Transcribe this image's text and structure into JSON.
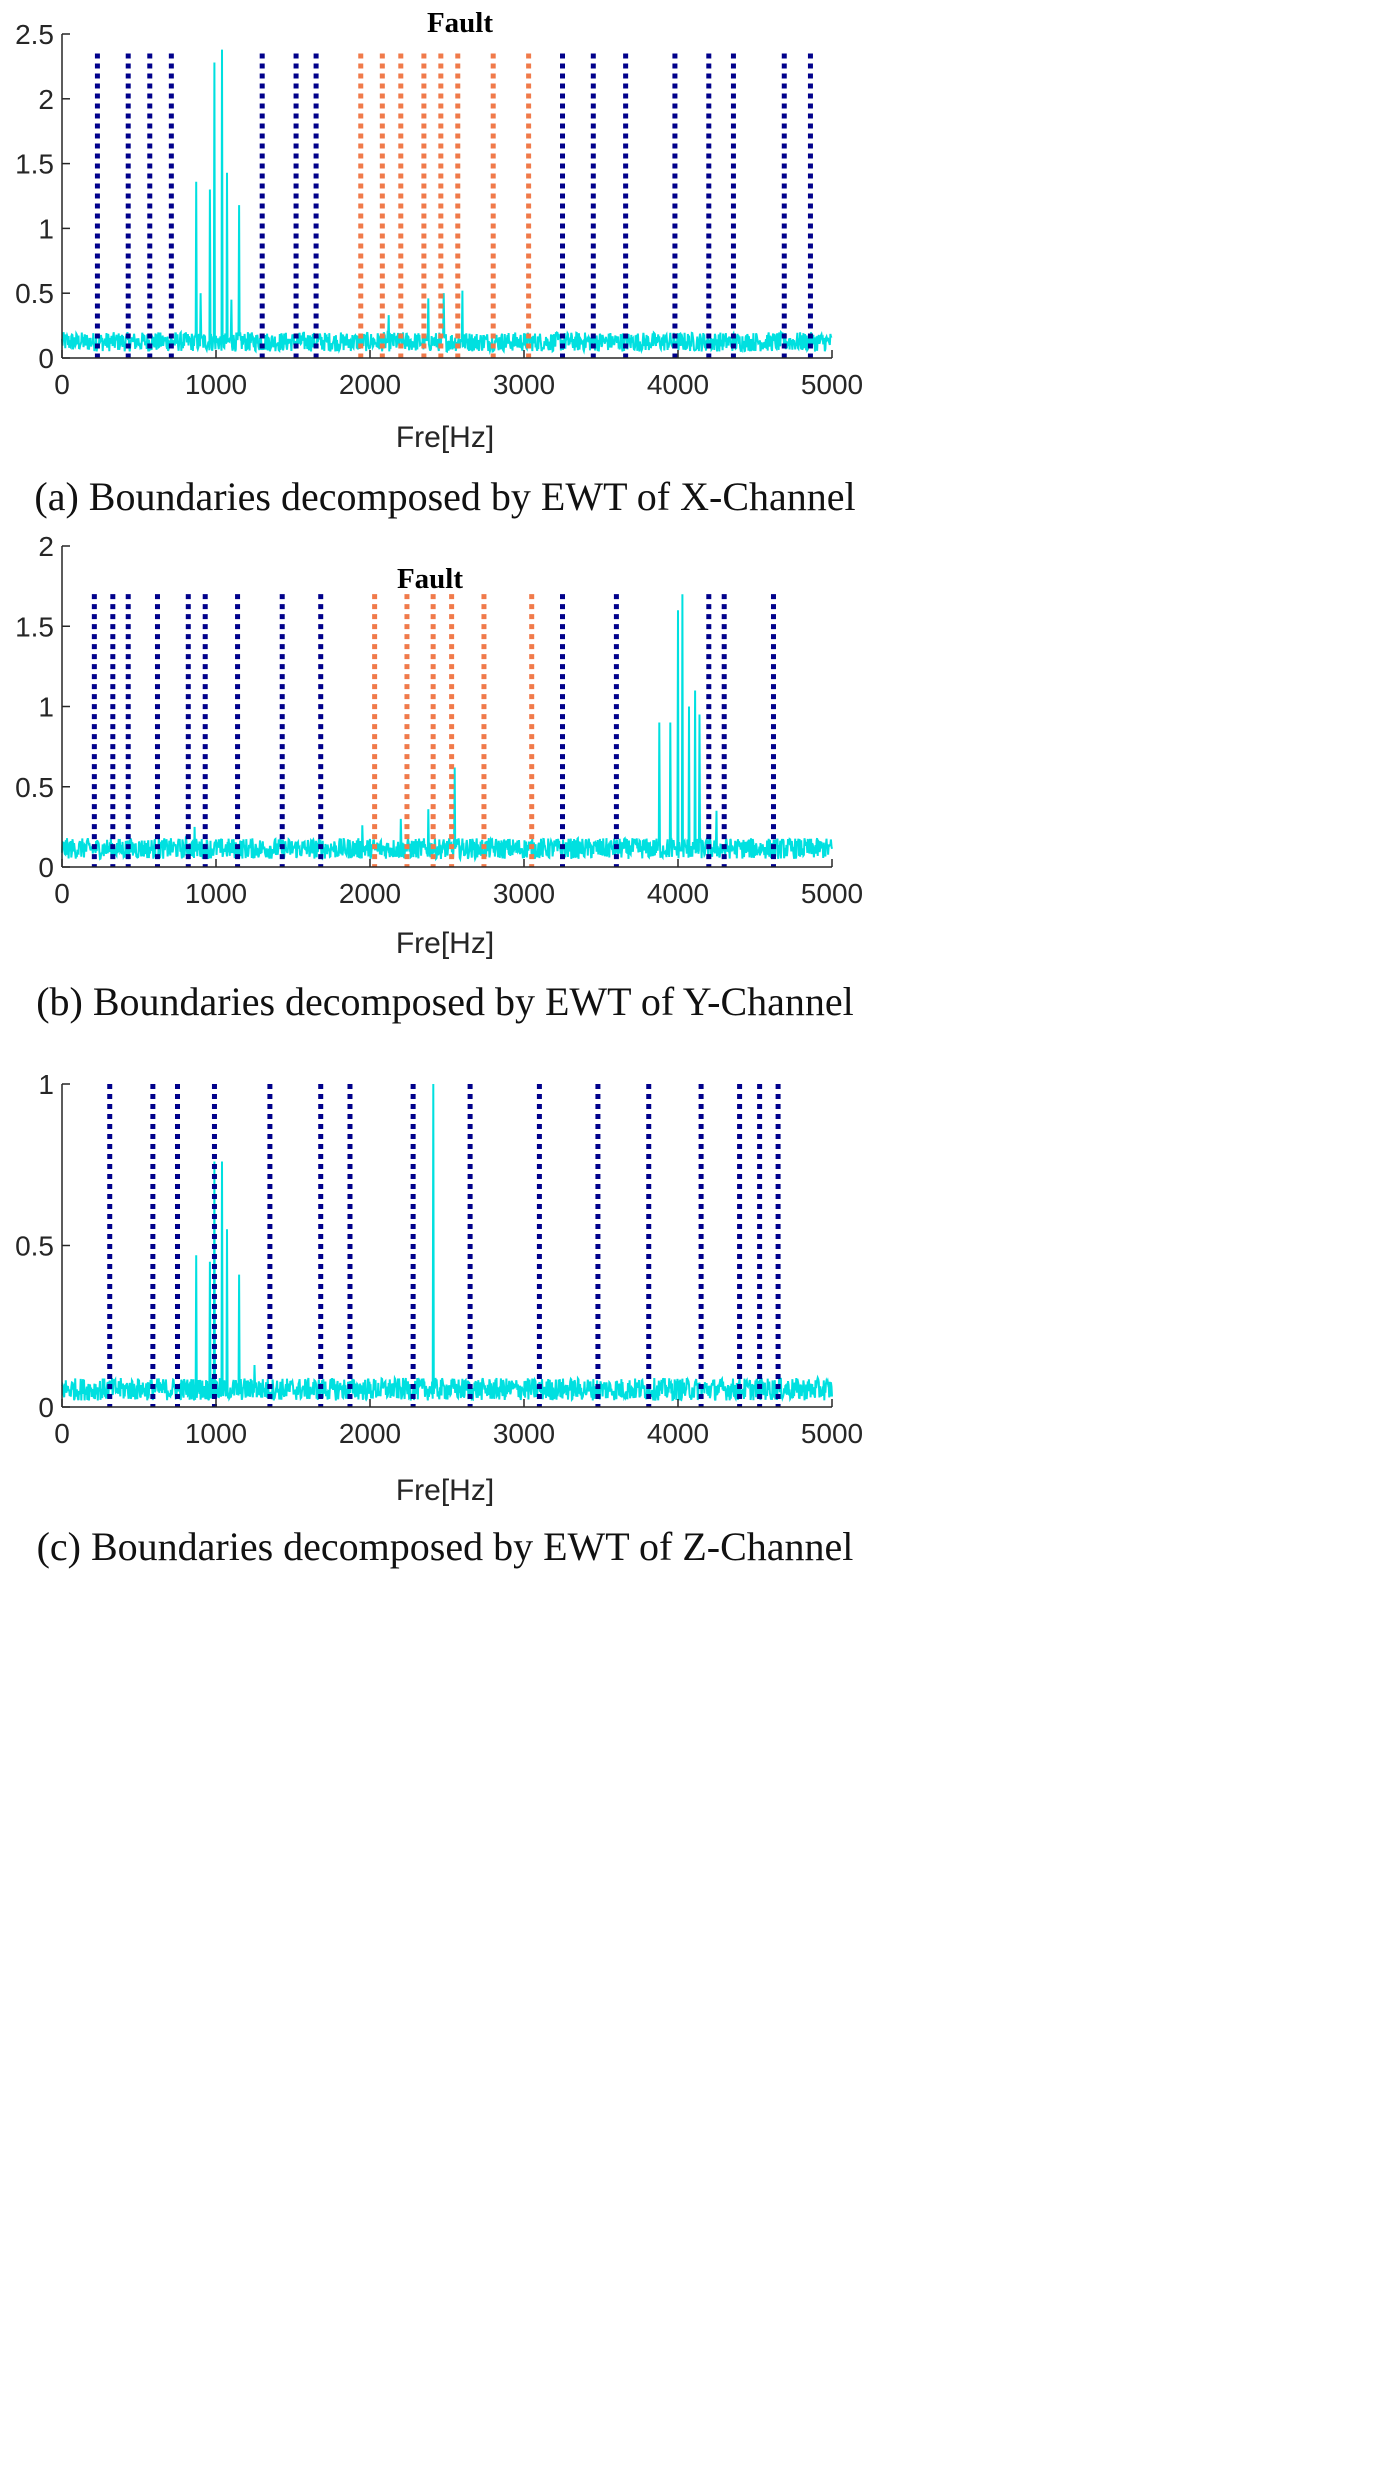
{
  "chart_data": [
    {
      "type": "line",
      "caption": "(a) Boundaries decomposed by EWT of X-Channel",
      "annotation": "Fault",
      "xlabel": "Fre[Hz]",
      "ylabel": "",
      "xlim": [
        0,
        5000
      ],
      "ylim": [
        0,
        2.5
      ],
      "xticks": [
        "0",
        "1000",
        "2000",
        "3000",
        "4000",
        "5000"
      ],
      "yticks": [
        "0",
        "0.5",
        "1",
        "1.5",
        "2",
        "2.5"
      ],
      "xtick_values": [
        0,
        1000,
        2000,
        3000,
        4000,
        5000
      ],
      "ytick_values": [
        0,
        0.5,
        1,
        1.5,
        2,
        2.5
      ],
      "boundary_height": 2.35,
      "baseline": [
        0.05,
        0.2
      ],
      "baseline_color": "#00e0e0",
      "normal_color": "#00008b",
      "fault_color": "#f07a4a",
      "normal_boundaries": [
        230,
        430,
        570,
        710,
        1300,
        1520,
        1650,
        3250,
        3450,
        3660,
        3980,
        4200,
        4360,
        4690,
        4860
      ],
      "fault_boundaries": [
        1940,
        2080,
        2200,
        2350,
        2460,
        2570,
        2800,
        3030
      ],
      "peaks": [
        {
          "x": 870,
          "y": 1.36
        },
        {
          "x": 900,
          "y": 0.5
        },
        {
          "x": 960,
          "y": 1.3
        },
        {
          "x": 990,
          "y": 2.28
        },
        {
          "x": 1040,
          "y": 2.38
        },
        {
          "x": 1070,
          "y": 1.43
        },
        {
          "x": 1150,
          "y": 1.18
        },
        {
          "x": 1100,
          "y": 0.45
        },
        {
          "x": 2120,
          "y": 0.33
        },
        {
          "x": 2380,
          "y": 0.46
        },
        {
          "x": 2480,
          "y": 0.5
        },
        {
          "x": 2600,
          "y": 0.52
        }
      ]
    },
    {
      "type": "line",
      "caption": "(b) Boundaries decomposed by EWT of Y-Channel",
      "annotation": "Fault",
      "xlabel": "Fre[Hz]",
      "ylabel": "",
      "xlim": [
        0,
        5000
      ],
      "ylim": [
        0,
        2
      ],
      "xticks": [
        "0",
        "1000",
        "2000",
        "3000",
        "4000",
        "5000"
      ],
      "yticks": [
        "0",
        "0.5",
        "1",
        "1.5",
        "2"
      ],
      "xtick_values": [
        0,
        1000,
        2000,
        3000,
        4000,
        5000
      ],
      "ytick_values": [
        0,
        0.5,
        1,
        1.5,
        2
      ],
      "boundary_height": 1.7,
      "baseline": [
        0.05,
        0.18
      ],
      "baseline_color": "#00e0e0",
      "normal_color": "#00008b",
      "fault_color": "#f07a4a",
      "normal_boundaries": [
        210,
        330,
        430,
        620,
        820,
        930,
        1140,
        1430,
        1680,
        3250,
        3600,
        4200,
        4300,
        4620
      ],
      "fault_boundaries": [
        2030,
        2240,
        2410,
        2530,
        2740,
        3050
      ],
      "peaks": [
        {
          "x": 860,
          "y": 0.25
        },
        {
          "x": 1950,
          "y": 0.26
        },
        {
          "x": 2200,
          "y": 0.3
        },
        {
          "x": 2380,
          "y": 0.36
        },
        {
          "x": 2550,
          "y": 0.62
        },
        {
          "x": 3880,
          "y": 0.9
        },
        {
          "x": 3950,
          "y": 0.9
        },
        {
          "x": 4000,
          "y": 1.6
        },
        {
          "x": 4030,
          "y": 1.7
        },
        {
          "x": 4070,
          "y": 1.0
        },
        {
          "x": 4110,
          "y": 1.1
        },
        {
          "x": 4140,
          "y": 0.95
        },
        {
          "x": 4250,
          "y": 0.35
        }
      ]
    },
    {
      "type": "line",
      "caption": "(c) Boundaries decomposed by EWT of Z-Channel",
      "annotation": "",
      "xlabel": "Fre[Hz]",
      "ylabel": "",
      "xlim": [
        0,
        5000
      ],
      "ylim": [
        0,
        1
      ],
      "xticks": [
        "0",
        "1000",
        "2000",
        "3000",
        "4000",
        "5000"
      ],
      "yticks": [
        "0",
        "0.5",
        "1"
      ],
      "xtick_values": [
        0,
        1000,
        2000,
        3000,
        4000,
        5000
      ],
      "ytick_values": [
        0,
        0.5,
        1
      ],
      "boundary_height": 1.0,
      "baseline": [
        0.02,
        0.09
      ],
      "baseline_color": "#00e0e0",
      "normal_color": "#00008b",
      "fault_color": "#f07a4a",
      "normal_boundaries": [
        310,
        590,
        750,
        990,
        1350,
        1680,
        1870,
        2280,
        2650,
        3100,
        3480,
        3810,
        4150,
        4400,
        4530,
        4650
      ],
      "fault_boundaries": [],
      "peaks": [
        {
          "x": 870,
          "y": 0.47
        },
        {
          "x": 960,
          "y": 0.45
        },
        {
          "x": 990,
          "y": 0.76
        },
        {
          "x": 1040,
          "y": 0.76
        },
        {
          "x": 1070,
          "y": 0.55
        },
        {
          "x": 1150,
          "y": 0.41
        },
        {
          "x": 1250,
          "y": 0.13
        },
        {
          "x": 2410,
          "y": 1.0
        }
      ]
    }
  ]
}
